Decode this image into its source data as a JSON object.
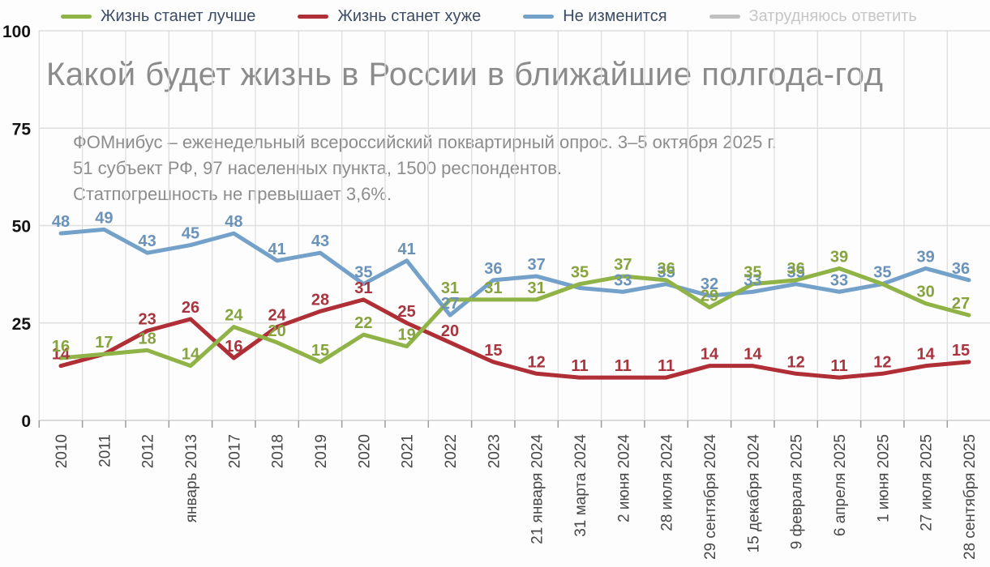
{
  "title": "Какой будет жизнь в России в ближайшие полгода-год",
  "subtitle": {
    "line1": "ФОМнибус – еженедельный всероссийский поквартирный опрос. 3–5 октября 2025 г.",
    "line2": "51 субъект РФ, 97 населенных пункта, 1500 респондентов.",
    "line3": "Статпогрешность не превышает 3,6%."
  },
  "legend": {
    "items": [
      {
        "label": "Жизнь станет лучше",
        "color": "#8fb347",
        "active": true
      },
      {
        "label": "Жизнь станет хуже",
        "color": "#b02e35",
        "active": true
      },
      {
        "label": "Не изменится",
        "color": "#74a1c9",
        "active": true
      },
      {
        "label": "Затрудняюсь ответить",
        "color": "#c0c0c0",
        "active": false
      }
    ]
  },
  "colors": {
    "grid": "#dedede",
    "axis_line": "#cfcfcf",
    "tick": "#9d9d9d",
    "y_label": "#141414",
    "x_label": "#474747",
    "title": "#8b8b8b",
    "subtitle": "#8d8d8d",
    "legend_text": "#3c4c64",
    "legend_disabled_text": "#c6c6c6"
  },
  "chart_data": {
    "type": "line",
    "title": "Какой будет жизнь в России в ближайшие полгода-год",
    "xlabel": "",
    "ylabel": "",
    "ylim": [
      0,
      100
    ],
    "y_ticks": [
      0,
      25,
      50,
      75,
      100
    ],
    "grid": true,
    "legend_position": "top",
    "categories": [
      "2010",
      "2011",
      "2012",
      "январь 2013",
      "2017",
      "2018",
      "2019",
      "2020",
      "2021",
      "2022",
      "2023",
      "21 января 2024",
      "31 марта 2024",
      "2 июня 2024",
      "28 июля 2024",
      "29 сентября 2024",
      "15 декабря 2024",
      "9 февраля 2025",
      "6 апреля 2025",
      "1 июня 2025",
      "27 июля 2025",
      "28 сентября 2025"
    ],
    "series": [
      {
        "name": "Жизнь станет лучше",
        "color": "#8fb347",
        "label_color": "#87a33e",
        "visible": true,
        "values": [
          16,
          17,
          18,
          14,
          24,
          20,
          15,
          22,
          19,
          31,
          31,
          31,
          35,
          37,
          36,
          29,
          35,
          36,
          39,
          35,
          30,
          27
        ],
        "hidden_labels": [
          19
        ]
      },
      {
        "name": "Жизнь станет хуже",
        "color": "#b02e35",
        "label_color": "#a8353e",
        "visible": true,
        "values": [
          14,
          17,
          23,
          26,
          16,
          24,
          28,
          31,
          25,
          20,
          15,
          12,
          11,
          11,
          11,
          14,
          14,
          12,
          11,
          12,
          14,
          15
        ],
        "hidden_labels": [
          1
        ]
      },
      {
        "name": "Не изменится",
        "color": "#74a1c9",
        "label_color": "#6b92b8",
        "visible": true,
        "values": [
          48,
          49,
          43,
          45,
          48,
          41,
          43,
          35,
          41,
          27,
          36,
          37,
          34,
          33,
          35,
          32,
          33,
          35,
          33,
          35,
          39,
          36
        ],
        "hidden_labels": [
          12
        ]
      },
      {
        "name": "Затрудняюсь ответить",
        "color": "#c0c0c0",
        "label_color": "#c0c0c0",
        "visible": false,
        "values": [],
        "hidden_labels": []
      }
    ]
  }
}
